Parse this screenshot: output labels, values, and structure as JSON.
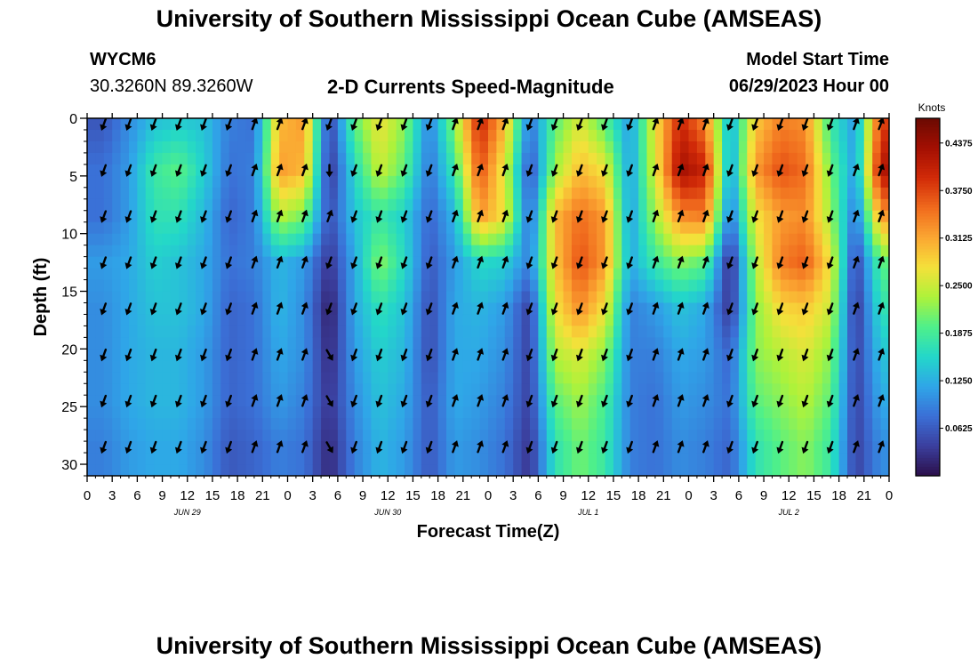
{
  "page": {
    "title_top": "University of Southern Mississippi Ocean Cube (AMSEAS)",
    "title_bottom": "University of Southern Mississippi Ocean Cube (AMSEAS)",
    "station": "WYCM6",
    "coords": "30.3260N  89.3260W",
    "plot_title": "2-D Currents Speed-Magnitude",
    "model_start_label": "Model Start Time",
    "model_start_value": "06/29/2023 Hour 00"
  },
  "chart_data": {
    "type": "heatmap",
    "title": "2-D Currents Speed-Magnitude",
    "xlabel": "Forecast Time(Z)",
    "ylabel": "Depth (ft)",
    "xlim": [
      0,
      96
    ],
    "ylim": [
      0,
      31
    ],
    "x_tick_values": [
      0,
      3,
      6,
      9,
      12,
      15,
      18,
      21,
      24,
      27,
      30,
      33,
      36,
      39,
      42,
      45,
      48,
      51,
      54,
      57,
      60,
      63,
      66,
      69,
      72,
      75,
      78,
      81,
      84,
      87,
      90,
      93,
      96
    ],
    "x_tick_labels": [
      "0",
      "3",
      "6",
      "9",
      "12",
      "15",
      "18",
      "21",
      "0",
      "3",
      "6",
      "9",
      "12",
      "15",
      "18",
      "21",
      "0",
      "3",
      "6",
      "9",
      "12",
      "15",
      "18",
      "21",
      "0",
      "3",
      "6",
      "9",
      "12",
      "15",
      "18",
      "21",
      "0"
    ],
    "date_labels": [
      {
        "x": 12,
        "text": "JUN 29"
      },
      {
        "x": 36,
        "text": "JUN 30"
      },
      {
        "x": 60,
        "text": "JUL 1"
      },
      {
        "x": 84,
        "text": "JUL 2"
      }
    ],
    "y_ticks": [
      "0",
      "5",
      "10",
      "15",
      "20",
      "25",
      "30"
    ],
    "colorbar": {
      "unit": "Knots",
      "min": 0,
      "max": 0.47,
      "tick_labels": [
        "0.4375",
        "0.3750",
        "0.3125",
        "0.2500",
        "0.1875",
        "0.1250",
        "0.0625"
      ],
      "colors": [
        "#2b0f4a",
        "#3b3f9e",
        "#3b6fd6",
        "#2fa6e8",
        "#23d7c9",
        "#4ff08a",
        "#aef23a",
        "#f5e03a",
        "#fba632",
        "#f06a1d",
        "#d12a08",
        "#a30f02",
        "#6b0a02"
      ]
    },
    "arrow_times": [
      2,
      5,
      8,
      11,
      14,
      17,
      20,
      23,
      26,
      29,
      32,
      35,
      38,
      41,
      44,
      47,
      50,
      53,
      56,
      59,
      62,
      65,
      68,
      71,
      74,
      77,
      80,
      83,
      86,
      89,
      92,
      95
    ],
    "arrow_depths": [
      0.5,
      4.5,
      8.5,
      12.5,
      16.5,
      20.5,
      24.5,
      28.5
    ],
    "speed_knots": [
      [
        0.06,
        0.1,
        0.14,
        0.15,
        0.14,
        0.09,
        0.08,
        0.3,
        0.32,
        0.04,
        0.2,
        0.27,
        0.22,
        0.09,
        0.22,
        0.4,
        0.3,
        0.08,
        0.2,
        0.26,
        0.2,
        0.11,
        0.27,
        0.4,
        0.34,
        0.12,
        0.29,
        0.34,
        0.33,
        0.18,
        0.11,
        0.38
      ],
      [
        0.08,
        0.11,
        0.18,
        0.2,
        0.15,
        0.08,
        0.09,
        0.32,
        0.3,
        0.03,
        0.16,
        0.25,
        0.2,
        0.08,
        0.18,
        0.37,
        0.26,
        0.05,
        0.23,
        0.3,
        0.27,
        0.11,
        0.26,
        0.43,
        0.4,
        0.11,
        0.32,
        0.37,
        0.35,
        0.21,
        0.11,
        0.42
      ],
      [
        0.08,
        0.11,
        0.17,
        0.17,
        0.13,
        0.07,
        0.09,
        0.24,
        0.21,
        0.05,
        0.14,
        0.18,
        0.15,
        0.07,
        0.13,
        0.32,
        0.27,
        0.07,
        0.3,
        0.35,
        0.32,
        0.11,
        0.23,
        0.33,
        0.34,
        0.08,
        0.27,
        0.32,
        0.33,
        0.23,
        0.08,
        0.32
      ],
      [
        0.11,
        0.12,
        0.15,
        0.14,
        0.12,
        0.08,
        0.09,
        0.13,
        0.11,
        0.03,
        0.12,
        0.22,
        0.16,
        0.06,
        0.11,
        0.16,
        0.15,
        0.09,
        0.29,
        0.37,
        0.32,
        0.12,
        0.18,
        0.22,
        0.2,
        0.02,
        0.24,
        0.34,
        0.36,
        0.27,
        0.04,
        0.2
      ],
      [
        0.1,
        0.12,
        0.14,
        0.14,
        0.12,
        0.07,
        0.08,
        0.13,
        0.1,
        0.01,
        0.12,
        0.17,
        0.14,
        0.05,
        0.12,
        0.13,
        0.11,
        0.04,
        0.27,
        0.33,
        0.27,
        0.09,
        0.11,
        0.14,
        0.12,
        0.03,
        0.22,
        0.28,
        0.29,
        0.25,
        0.03,
        0.17
      ],
      [
        0.1,
        0.12,
        0.13,
        0.13,
        0.11,
        0.07,
        0.08,
        0.12,
        0.1,
        0.02,
        0.11,
        0.15,
        0.13,
        0.05,
        0.12,
        0.12,
        0.1,
        0.04,
        0.24,
        0.26,
        0.22,
        0.09,
        0.09,
        0.12,
        0.11,
        0.07,
        0.22,
        0.24,
        0.26,
        0.22,
        0.04,
        0.14
      ],
      [
        0.1,
        0.12,
        0.13,
        0.13,
        0.11,
        0.07,
        0.08,
        0.11,
        0.09,
        0.03,
        0.1,
        0.14,
        0.12,
        0.06,
        0.12,
        0.11,
        0.09,
        0.04,
        0.2,
        0.23,
        0.19,
        0.09,
        0.08,
        0.11,
        0.1,
        0.08,
        0.2,
        0.22,
        0.24,
        0.2,
        0.04,
        0.12
      ],
      [
        0.09,
        0.11,
        0.12,
        0.12,
        0.1,
        0.06,
        0.07,
        0.09,
        0.08,
        0.02,
        0.09,
        0.13,
        0.11,
        0.06,
        0.11,
        0.1,
        0.08,
        0.03,
        0.17,
        0.21,
        0.18,
        0.09,
        0.08,
        0.1,
        0.09,
        0.07,
        0.17,
        0.2,
        0.22,
        0.18,
        0.04,
        0.1
      ]
    ],
    "direction_deg": [
      [
        200,
        200,
        200,
        200,
        200,
        200,
        20,
        20,
        20,
        200,
        200,
        200,
        200,
        200,
        20,
        20,
        20,
        200,
        200,
        200,
        200,
        200,
        20,
        20,
        20,
        200,
        200,
        200,
        200,
        200,
        20,
        20
      ],
      [
        200,
        200,
        200,
        200,
        200,
        200,
        20,
        20,
        20,
        180,
        200,
        200,
        200,
        200,
        20,
        20,
        20,
        200,
        200,
        200,
        200,
        200,
        20,
        20,
        20,
        200,
        200,
        200,
        200,
        200,
        20,
        20
      ],
      [
        200,
        200,
        200,
        200,
        200,
        200,
        20,
        20,
        20,
        20,
        200,
        200,
        200,
        200,
        20,
        20,
        20,
        200,
        200,
        200,
        200,
        200,
        20,
        20,
        20,
        200,
        200,
        200,
        200,
        200,
        20,
        20
      ],
      [
        200,
        200,
        200,
        200,
        200,
        200,
        20,
        20,
        20,
        200,
        200,
        200,
        200,
        200,
        20,
        20,
        20,
        200,
        200,
        200,
        200,
        200,
        20,
        20,
        20,
        200,
        200,
        200,
        200,
        200,
        20,
        20
      ],
      [
        200,
        200,
        200,
        200,
        200,
        200,
        20,
        20,
        20,
        200,
        200,
        200,
        200,
        200,
        20,
        20,
        20,
        200,
        200,
        200,
        200,
        200,
        20,
        20,
        20,
        200,
        200,
        200,
        200,
        200,
        20,
        20
      ],
      [
        200,
        200,
        200,
        200,
        200,
        200,
        20,
        20,
        20,
        150,
        200,
        200,
        200,
        200,
        20,
        20,
        20,
        200,
        200,
        200,
        200,
        200,
        20,
        20,
        20,
        200,
        200,
        200,
        200,
        200,
        20,
        20
      ],
      [
        200,
        200,
        200,
        200,
        200,
        200,
        20,
        20,
        20,
        150,
        200,
        200,
        200,
        200,
        20,
        20,
        20,
        200,
        200,
        200,
        200,
        200,
        20,
        20,
        20,
        200,
        200,
        200,
        200,
        200,
        20,
        20
      ],
      [
        200,
        200,
        200,
        200,
        200,
        200,
        20,
        20,
        20,
        150,
        200,
        200,
        200,
        200,
        20,
        20,
        20,
        200,
        200,
        200,
        200,
        200,
        20,
        20,
        20,
        200,
        200,
        200,
        200,
        200,
        20,
        20
      ]
    ]
  }
}
